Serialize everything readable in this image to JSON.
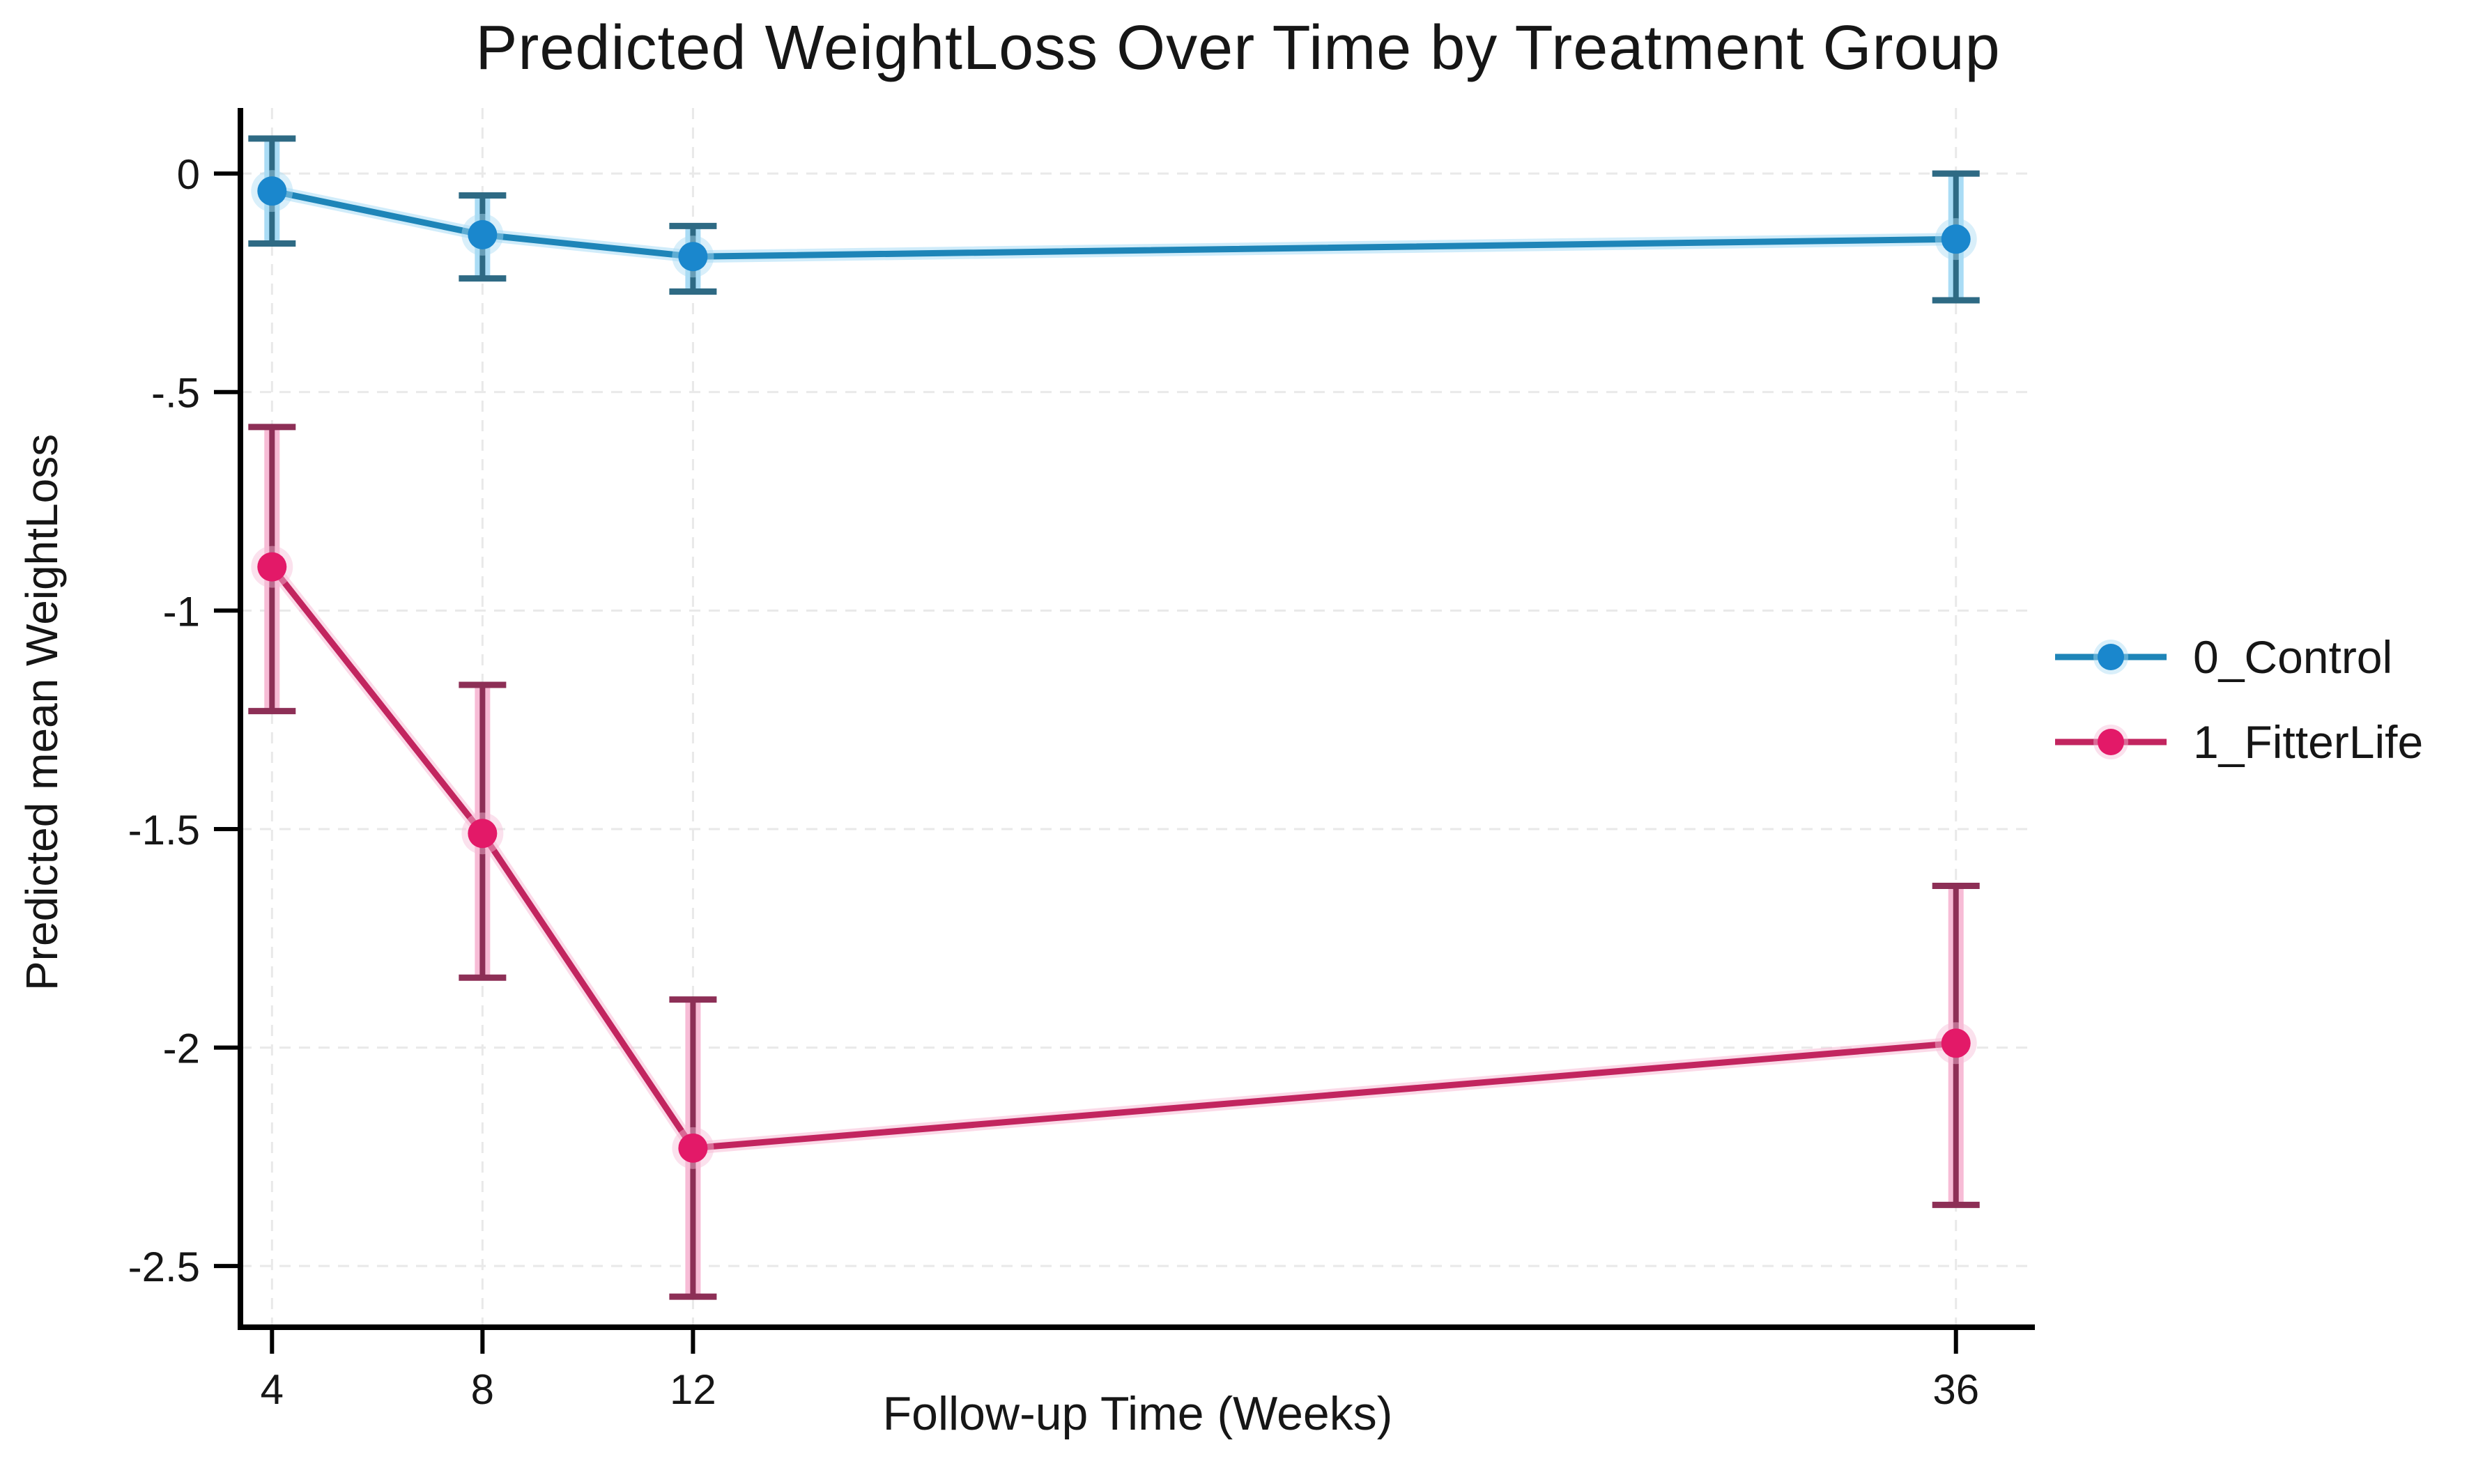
{
  "figure": {
    "background_color": "#ffffff",
    "text_color": "#161616",
    "axis_color": "#000000",
    "gridline_color": "#e9e9e9"
  },
  "chart_data": {
    "type": "line",
    "title": "Predicted WeightLoss Over Time by Treatment Group",
    "xlabel": "Follow-up Time (Weeks)",
    "ylabel": "Predicted mean WeightLoss",
    "x": [
      4,
      8,
      12,
      36
    ],
    "x_tick_labels": [
      "4",
      "8",
      "12",
      "36"
    ],
    "y_ticks": [
      0,
      -0.5,
      -1,
      -1.5,
      -2,
      -2.5
    ],
    "y_tick_labels": [
      "0",
      "-.5",
      "-1",
      "-1.5",
      "-2",
      "-2.5"
    ],
    "xlim": [
      3.4,
      37.5
    ],
    "ylim": [
      -2.64,
      0.15
    ],
    "grid": true,
    "error_bars": true,
    "legend_position": "right",
    "series": [
      {
        "name": "0_Control",
        "marker_color": "#1a87cd",
        "line_color": "#1e85b8",
        "halo_color": "#aadcf5",
        "cap_color": "#2e6a84",
        "means": [
          -0.04,
          -0.14,
          -0.19,
          -0.15
        ],
        "ci_high": [
          0.08,
          -0.05,
          -0.12,
          0.0
        ],
        "ci_low": [
          -0.16,
          -0.24,
          -0.27,
          -0.29
        ]
      },
      {
        "name": "1_FitterLife",
        "marker_color": "#e31968",
        "line_color": "#c2255f",
        "halo_color": "#f7bcd6",
        "cap_color": "#8d2f56",
        "means": [
          -0.9,
          -1.51,
          -2.23,
          -1.99
        ],
        "ci_high": [
          -0.58,
          -1.17,
          -1.89,
          -1.63
        ],
        "ci_low": [
          -1.23,
          -1.84,
          -2.57,
          -2.36
        ]
      }
    ]
  }
}
